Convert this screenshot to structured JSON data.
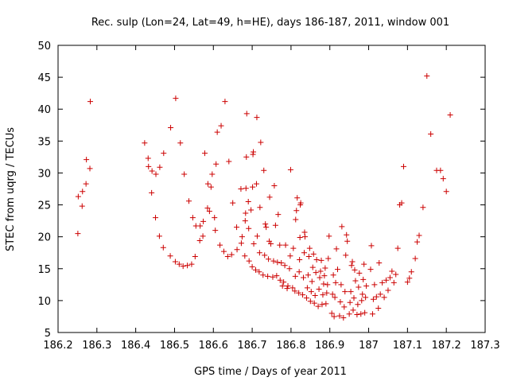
{
  "chart_data": {
    "type": "scatter",
    "title": "Rec. sulp (Lon=24, Lat=49, h=HE), days 186-187, 2011, window 001",
    "xlabel": "GPS time / Days of year 2011",
    "ylabel": "STEC from uqrg / TECUs",
    "xlim": [
      186.2,
      187.3
    ],
    "ylim": [
      5,
      50
    ],
    "x_ticks": [
      186.2,
      186.3,
      186.4,
      186.5,
      186.6,
      186.7,
      186.8,
      186.9,
      187.0,
      187.1,
      187.2,
      187.3
    ],
    "x_tick_labels": [
      "186.2",
      "186.3",
      "186.4",
      "186.5",
      "186.6",
      "186.7",
      "186.8",
      "186.9",
      "187",
      "187.1",
      "187.2",
      "187.3"
    ],
    "y_ticks": [
      5,
      10,
      15,
      20,
      25,
      30,
      35,
      40,
      45,
      50
    ],
    "y_tick_labels": [
      "5",
      "10",
      "15",
      "20",
      "25",
      "30",
      "35",
      "40",
      "45",
      "50"
    ],
    "grid": false,
    "marker": "plus",
    "marker_color": "#cc0000",
    "points": [
      [
        186.251,
        20.5
      ],
      [
        186.252,
        26.3
      ],
      [
        186.262,
        24.8
      ],
      [
        186.263,
        27.1
      ],
      [
        186.272,
        28.3
      ],
      [
        186.273,
        32.1
      ],
      [
        186.282,
        30.7
      ],
      [
        186.283,
        41.2
      ],
      [
        186.423,
        34.7
      ],
      [
        186.432,
        32.3
      ],
      [
        186.433,
        31.0
      ],
      [
        186.441,
        26.9
      ],
      [
        186.442,
        30.3
      ],
      [
        186.451,
        23.0
      ],
      [
        186.452,
        29.8
      ],
      [
        186.461,
        20.1
      ],
      [
        186.462,
        30.9
      ],
      [
        186.471,
        18.3
      ],
      [
        186.472,
        33.1
      ],
      [
        186.489,
        17.0
      ],
      [
        186.49,
        37.1
      ],
      [
        186.502,
        16.1
      ],
      [
        186.503,
        41.7
      ],
      [
        186.512,
        15.7
      ],
      [
        186.515,
        34.7
      ],
      [
        186.522,
        15.4
      ],
      [
        186.525,
        29.8
      ],
      [
        186.533,
        15.5
      ],
      [
        186.537,
        25.6
      ],
      [
        186.544,
        15.7
      ],
      [
        186.547,
        23.0
      ],
      [
        186.553,
        16.9
      ],
      [
        186.555,
        21.7
      ],
      [
        186.565,
        19.4
      ],
      [
        186.566,
        21.7
      ],
      [
        186.573,
        20.1
      ],
      [
        186.574,
        22.4
      ],
      [
        186.578,
        33.1
      ],
      [
        186.585,
        24.5
      ],
      [
        186.586,
        28.3
      ],
      [
        186.59,
        24.0
      ],
      [
        186.594,
        27.8
      ],
      [
        186.597,
        29.8
      ],
      [
        186.603,
        23.0
      ],
      [
        186.605,
        21.0
      ],
      [
        186.607,
        31.4
      ],
      [
        186.61,
        36.4
      ],
      [
        186.617,
        18.7
      ],
      [
        186.62,
        37.4
      ],
      [
        186.627,
        17.7
      ],
      [
        186.63,
        41.2
      ],
      [
        186.637,
        16.9
      ],
      [
        186.64,
        31.8
      ],
      [
        186.647,
        17.2
      ],
      [
        186.65,
        25.3
      ],
      [
        186.66,
        21.5
      ],
      [
        186.661,
        18.0
      ],
      [
        186.671,
        27.5
      ],
      [
        186.672,
        19.0
      ],
      [
        186.674,
        20.0
      ],
      [
        186.681,
        17.0
      ],
      [
        186.682,
        22.5
      ],
      [
        186.683,
        23.7
      ],
      [
        186.684,
        27.6
      ],
      [
        186.685,
        32.5
      ],
      [
        186.686,
        39.3
      ],
      [
        186.69,
        25.5
      ],
      [
        186.691,
        21.3
      ],
      [
        186.692,
        16.2
      ],
      [
        186.697,
        24.2
      ],
      [
        186.7,
        15.3
      ],
      [
        186.701,
        27.8
      ],
      [
        186.702,
        32.9
      ],
      [
        186.703,
        33.3
      ],
      [
        186.704,
        18.9
      ],
      [
        186.709,
        14.8
      ],
      [
        186.711,
        28.3
      ],
      [
        186.712,
        38.7
      ],
      [
        186.713,
        20.1
      ],
      [
        186.718,
        14.5
      ],
      [
        186.719,
        17.5
      ],
      [
        186.72,
        24.6
      ],
      [
        186.722,
        34.8
      ],
      [
        186.728,
        14.0
      ],
      [
        186.73,
        30.4
      ],
      [
        186.732,
        17.1
      ],
      [
        186.734,
        22.0
      ],
      [
        186.736,
        21.5
      ],
      [
        186.74,
        13.8
      ],
      [
        186.742,
        16.5
      ],
      [
        186.744,
        19.3
      ],
      [
        186.745,
        26.2
      ],
      [
        186.748,
        18.9
      ],
      [
        186.753,
        13.7
      ],
      [
        186.755,
        16.2
      ],
      [
        186.757,
        28.0
      ],
      [
        186.76,
        21.8
      ],
      [
        186.763,
        13.9
      ],
      [
        186.765,
        16.0
      ],
      [
        186.767,
        23.5
      ],
      [
        186.771,
        18.7
      ],
      [
        186.772,
        13.2
      ],
      [
        186.775,
        15.9
      ],
      [
        186.778,
        12.3
      ],
      [
        186.781,
        12.9
      ],
      [
        186.784,
        15.5
      ],
      [
        186.786,
        18.7
      ],
      [
        186.79,
        11.9
      ],
      [
        186.792,
        12.3
      ],
      [
        186.796,
        15.0
      ],
      [
        186.798,
        17.0
      ],
      [
        186.799,
        30.5
      ],
      [
        186.804,
        12.0
      ],
      [
        186.806,
        18.2
      ],
      [
        186.81,
        11.5
      ],
      [
        186.811,
        13.8
      ],
      [
        186.812,
        22.7
      ],
      [
        186.814,
        24.1
      ],
      [
        186.816,
        26.1
      ],
      [
        186.82,
        11.2
      ],
      [
        186.821,
        14.5
      ],
      [
        186.822,
        16.4
      ],
      [
        186.823,
        19.9
      ],
      [
        186.824,
        25.0
      ],
      [
        186.825,
        25.3
      ],
      [
        186.83,
        10.9
      ],
      [
        186.832,
        13.6
      ],
      [
        186.834,
        17.5
      ],
      [
        186.835,
        20.7
      ],
      [
        186.836,
        20.0
      ],
      [
        186.84,
        10.4
      ],
      [
        186.842,
        12.0
      ],
      [
        186.844,
        14.0
      ],
      [
        186.846,
        16.9
      ],
      [
        186.848,
        18.2
      ],
      [
        186.85,
        9.9
      ],
      [
        186.852,
        11.4
      ],
      [
        186.854,
        13.0
      ],
      [
        186.856,
        15.2
      ],
      [
        186.858,
        17.3
      ],
      [
        186.86,
        9.6
      ],
      [
        186.862,
        10.8
      ],
      [
        186.864,
        14.4
      ],
      [
        186.866,
        16.4
      ],
      [
        186.87,
        9.1
      ],
      [
        186.872,
        11.8
      ],
      [
        186.874,
        13.6
      ],
      [
        186.876,
        14.6
      ],
      [
        186.878,
        16.3
      ],
      [
        186.88,
        9.4
      ],
      [
        186.882,
        10.9
      ],
      [
        186.884,
        12.6
      ],
      [
        186.886,
        13.9
      ],
      [
        186.888,
        15.1
      ],
      [
        186.89,
        9.5
      ],
      [
        186.892,
        11.2
      ],
      [
        186.894,
        12.5
      ],
      [
        186.896,
        16.6
      ],
      [
        186.898,
        20.1
      ],
      [
        186.905,
        8.0
      ],
      [
        186.907,
        11.0
      ],
      [
        186.909,
        14.0
      ],
      [
        186.911,
        7.5
      ],
      [
        186.913,
        10.5
      ],
      [
        186.915,
        12.8
      ],
      [
        186.917,
        18.1
      ],
      [
        186.92,
        14.9
      ],
      [
        186.925,
        7.6
      ],
      [
        186.927,
        9.8
      ],
      [
        186.929,
        12.5
      ],
      [
        186.931,
        21.6
      ],
      [
        186.935,
        7.3
      ],
      [
        186.937,
        9.0
      ],
      [
        186.939,
        11.4
      ],
      [
        186.941,
        17.1
      ],
      [
        186.943,
        20.3
      ],
      [
        186.945,
        19.3
      ],
      [
        186.95,
        7.9
      ],
      [
        186.952,
        9.7
      ],
      [
        186.954,
        11.4
      ],
      [
        186.956,
        15.5
      ],
      [
        186.958,
        16.1
      ],
      [
        186.96,
        8.5
      ],
      [
        186.962,
        10.4
      ],
      [
        186.964,
        14.8
      ],
      [
        186.966,
        13.1
      ],
      [
        186.97,
        7.8
      ],
      [
        186.972,
        9.4
      ],
      [
        186.974,
        12.1
      ],
      [
        186.976,
        14.3
      ],
      [
        186.98,
        7.9
      ],
      [
        186.982,
        10.0
      ],
      [
        186.984,
        11.0
      ],
      [
        186.986,
        13.3
      ],
      [
        186.988,
        15.7
      ],
      [
        186.99,
        8.1
      ],
      [
        186.992,
        10.5
      ],
      [
        186.994,
        12.3
      ],
      [
        187.005,
        14.9
      ],
      [
        187.007,
        18.6
      ],
      [
        187.01,
        7.9
      ],
      [
        187.012,
        10.2
      ],
      [
        187.015,
        12.5
      ],
      [
        187.02,
        10.6
      ],
      [
        187.025,
        8.8
      ],
      [
        187.027,
        15.9
      ],
      [
        187.03,
        11.0
      ],
      [
        187.035,
        12.8
      ],
      [
        187.04,
        10.5
      ],
      [
        187.045,
        13.2
      ],
      [
        187.05,
        11.6
      ],
      [
        187.055,
        13.6
      ],
      [
        187.06,
        14.6
      ],
      [
        187.065,
        12.8
      ],
      [
        187.07,
        14.1
      ],
      [
        187.075,
        18.2
      ],
      [
        187.08,
        25.0
      ],
      [
        187.085,
        25.3
      ],
      [
        187.09,
        31.0
      ],
      [
        187.1,
        12.9
      ],
      [
        187.105,
        13.5
      ],
      [
        187.11,
        14.5
      ],
      [
        187.12,
        16.6
      ],
      [
        187.125,
        19.2
      ],
      [
        187.13,
        20.2
      ],
      [
        187.14,
        24.6
      ],
      [
        187.15,
        45.2
      ],
      [
        187.16,
        36.1
      ],
      [
        187.175,
        30.4
      ],
      [
        187.185,
        30.4
      ],
      [
        187.192,
        29.1
      ],
      [
        187.2,
        27.1
      ],
      [
        187.21,
        39.1
      ]
    ]
  }
}
